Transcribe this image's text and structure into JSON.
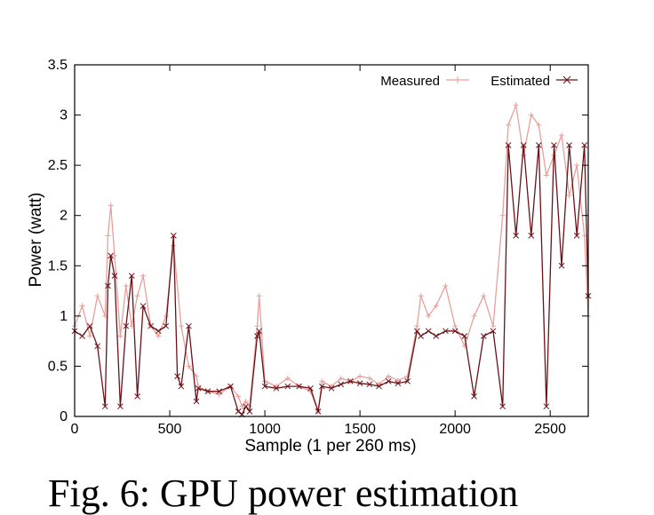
{
  "caption": "Fig. 6: GPU power estimation",
  "chart_data": {
    "type": "line",
    "xlabel": "Sample (1 per 260 ms)",
    "ylabel": "Power (watt)",
    "xlim": [
      0,
      2700
    ],
    "ylim": [
      0,
      3.5
    ],
    "xticks": [
      0,
      500,
      1000,
      1500,
      2000,
      2500
    ],
    "yticks": [
      0,
      0.5,
      1,
      1.5,
      2,
      2.5,
      3,
      3.5
    ],
    "ytick_labels": [
      "0",
      "0.5",
      "1",
      "1.5",
      "2",
      "2.5",
      "3",
      "3.5"
    ],
    "grid": false,
    "legend_position": "top-right",
    "series": [
      {
        "name": "Measured",
        "color": "#e8a09a",
        "marker": "plus",
        "x": [
          0,
          40,
          80,
          120,
          160,
          175,
          190,
          210,
          240,
          270,
          300,
          330,
          360,
          400,
          440,
          480,
          520,
          560,
          600,
          640,
          650,
          700,
          760,
          820,
          860,
          880,
          900,
          920,
          960,
          970,
          1000,
          1060,
          1120,
          1180,
          1240,
          1280,
          1300,
          1350,
          1400,
          1450,
          1500,
          1550,
          1600,
          1650,
          1700,
          1750,
          1800,
          1820,
          1860,
          1900,
          1950,
          2000,
          2050,
          2100,
          2150,
          2200,
          2250,
          2280,
          2320,
          2360,
          2400,
          2440,
          2480,
          2520,
          2560,
          2600,
          2640,
          2680,
          2700
        ],
        "y": [
          0.9,
          1.1,
          0.8,
          1.2,
          1.0,
          1.8,
          2.1,
          1.6,
          0.8,
          1.3,
          0.9,
          1.2,
          1.4,
          0.9,
          0.8,
          1.0,
          1.7,
          0.9,
          0.5,
          0.4,
          0.3,
          0.25,
          0.22,
          0.3,
          0.2,
          0.1,
          0.15,
          0.1,
          0.9,
          1.2,
          0.35,
          0.3,
          0.38,
          0.3,
          0.25,
          0.05,
          0.35,
          0.3,
          0.38,
          0.35,
          0.4,
          0.38,
          0.32,
          0.4,
          0.36,
          0.4,
          0.9,
          1.2,
          1.0,
          1.1,
          1.3,
          0.9,
          0.7,
          1.0,
          1.2,
          0.9,
          2.0,
          2.9,
          3.1,
          2.6,
          3.0,
          2.9,
          2.4,
          2.6,
          2.8,
          2.2,
          2.5,
          1.8,
          1.0
        ]
      },
      {
        "name": "Estimated",
        "color": "#6b1218",
        "marker": "cross",
        "x": [
          0,
          40,
          80,
          120,
          160,
          175,
          190,
          210,
          240,
          270,
          300,
          330,
          360,
          400,
          440,
          480,
          520,
          540,
          560,
          600,
          640,
          650,
          700,
          760,
          820,
          860,
          880,
          900,
          920,
          960,
          970,
          1000,
          1060,
          1120,
          1180,
          1240,
          1280,
          1300,
          1350,
          1400,
          1450,
          1500,
          1550,
          1600,
          1650,
          1700,
          1750,
          1800,
          1820,
          1860,
          1900,
          1950,
          2000,
          2050,
          2100,
          2150,
          2200,
          2250,
          2280,
          2320,
          2360,
          2400,
          2440,
          2480,
          2520,
          2560,
          2600,
          2640,
          2680,
          2700
        ],
        "y": [
          0.85,
          0.8,
          0.9,
          0.7,
          0.1,
          1.3,
          1.6,
          1.4,
          0.1,
          0.9,
          1.4,
          0.2,
          1.1,
          0.9,
          0.85,
          0.9,
          1.8,
          0.4,
          0.3,
          0.9,
          0.15,
          0.28,
          0.25,
          0.25,
          0.3,
          0.05,
          0.02,
          0.1,
          0.05,
          0.8,
          0.85,
          0.3,
          0.28,
          0.3,
          0.3,
          0.28,
          0.05,
          0.3,
          0.28,
          0.32,
          0.35,
          0.33,
          0.32,
          0.3,
          0.35,
          0.33,
          0.35,
          0.85,
          0.8,
          0.85,
          0.8,
          0.85,
          0.85,
          0.8,
          0.2,
          0.8,
          0.85,
          0.1,
          2.7,
          1.8,
          2.7,
          1.8,
          2.7,
          0.1,
          2.7,
          1.5,
          2.7,
          1.8,
          2.7,
          1.2
        ]
      }
    ]
  }
}
